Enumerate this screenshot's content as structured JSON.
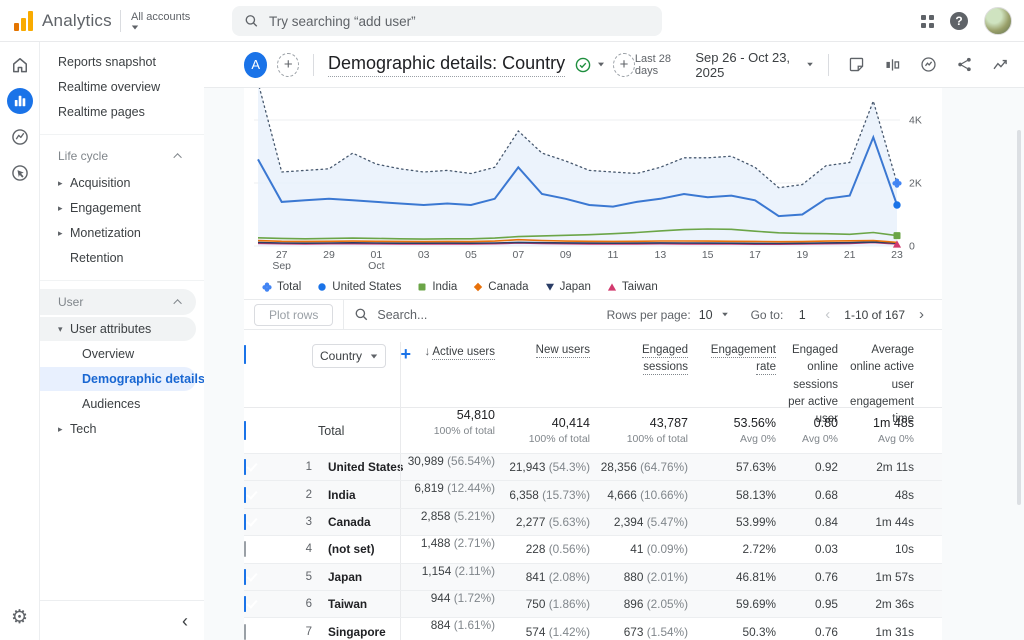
{
  "app_bar": {
    "product": "Analytics",
    "account_switcher": "All accounts",
    "search_placeholder": "Try searching “add user”"
  },
  "sidebar": {
    "top": [
      "Reports snapshot",
      "Realtime overview",
      "Realtime pages"
    ],
    "lifecycle": {
      "label": "Life cycle",
      "items": [
        "Acquisition",
        "Engagement",
        "Monetization",
        "Retention"
      ]
    },
    "user": {
      "label": "User",
      "attributes": "User attributes",
      "children": [
        "Overview",
        "Demographic details",
        "Audiences"
      ],
      "tech": "Tech"
    }
  },
  "toolbar": {
    "avatar_letter": "A",
    "title": "Demographic details: Country",
    "date_preset": "Last 28 days",
    "date_range": "Sep 26 - Oct 23, 2025"
  },
  "chart_data": {
    "type": "line",
    "x_label_note": "days Sep 26 - Oct 23",
    "ylim": [
      0,
      4800
    ],
    "y_ticks": [
      {
        "v": 0,
        "label": "0"
      },
      {
        "v": 2000,
        "label": "2K"
      },
      {
        "v": 4000,
        "label": "4K"
      }
    ],
    "x_ticks": [
      {
        "i": 1,
        "label": "27",
        "sub": "Sep"
      },
      {
        "i": 3,
        "label": "29"
      },
      {
        "i": 5,
        "label": "01",
        "sub": "Oct"
      },
      {
        "i": 7,
        "label": "03"
      },
      {
        "i": 9,
        "label": "05"
      },
      {
        "i": 11,
        "label": "07"
      },
      {
        "i": 13,
        "label": "09"
      },
      {
        "i": 15,
        "label": "11"
      },
      {
        "i": 17,
        "label": "13"
      },
      {
        "i": 19,
        "label": "15"
      },
      {
        "i": 21,
        "label": "17"
      },
      {
        "i": 23,
        "label": "19"
      },
      {
        "i": 25,
        "label": "21"
      },
      {
        "i": 27,
        "label": "23"
      }
    ],
    "series": [
      {
        "name": "Total",
        "color": "#4285f4",
        "line_color": "#47586e",
        "marker": "clover",
        "dotted": true,
        "width": 1.3,
        "area": true,
        "end_marker": true,
        "values": [
          5200,
          2350,
          2400,
          2450,
          2950,
          2600,
          2450,
          2350,
          2400,
          2300,
          2500,
          3650,
          2950,
          2700,
          2400,
          2350,
          2300,
          2500,
          2800,
          2800,
          2850,
          2500,
          1850,
          1950,
          2550,
          2650,
          4600,
          2000
        ]
      },
      {
        "name": "United States",
        "color": "#1a73e8",
        "line_color": "#3b78d2",
        "marker": "circle",
        "dotted": false,
        "width": 2,
        "end_marker": true,
        "values": [
          2750,
          1400,
          1450,
          1500,
          1450,
          1400,
          1350,
          1300,
          1350,
          1300,
          1500,
          2500,
          1650,
          1500,
          1300,
          1250,
          1400,
          1500,
          1650,
          1550,
          1600,
          1450,
          950,
          1000,
          1500,
          1600,
          3450,
          1300
        ]
      },
      {
        "name": "India",
        "color": "#6ba547",
        "line_color": "#6ba547",
        "marker": "square",
        "dotted": false,
        "width": 1.6,
        "end_marker": true,
        "values": [
          260,
          240,
          230,
          240,
          250,
          240,
          230,
          220,
          230,
          230,
          250,
          300,
          320,
          340,
          360,
          390,
          430,
          480,
          520,
          540,
          530,
          470,
          420,
          400,
          390,
          370,
          430,
          330
        ]
      },
      {
        "name": "Canada",
        "color": "#e8710a",
        "line_color": "#e8710a",
        "marker": "diamond",
        "dotted": false,
        "width": 1.6,
        "end_marker": false,
        "values": [
          170,
          150,
          145,
          150,
          155,
          150,
          145,
          140,
          145,
          140,
          155,
          200,
          175,
          155,
          150,
          145,
          150,
          160,
          160,
          155,
          150,
          145,
          135,
          140,
          155,
          165,
          175,
          115
        ]
      },
      {
        "name": "Japan",
        "color": "#2a3d66",
        "line_color": "#2a3d66",
        "marker": "tri_down",
        "dotted": false,
        "width": 1.6,
        "end_marker": false,
        "values": [
          110,
          95,
          90,
          95,
          100,
          95,
          90,
          88,
          92,
          88,
          95,
          115,
          105,
          98,
          92,
          88,
          92,
          98,
          95,
          92,
          88,
          82,
          80,
          85,
          98,
          105,
          125,
          90
        ]
      },
      {
        "name": "Taiwan",
        "color": "#d23a6e",
        "line_color": "#d23a6e",
        "marker": "tri_up",
        "dotted": false,
        "width": 1.6,
        "end_marker": true,
        "values": [
          85,
          72,
          68,
          72,
          74,
          70,
          65,
          62,
          66,
          62,
          72,
          95,
          82,
          72,
          66,
          62,
          66,
          72,
          68,
          66,
          62,
          56,
          56,
          62,
          72,
          82,
          115,
          65
        ]
      }
    ]
  },
  "controls": {
    "plot_rows": "Plot rows",
    "search_placeholder": "Search...",
    "rows_per_page_label": "Rows per page:",
    "rows_per_page_value": "10",
    "goto_label": "Go to:",
    "goto_value": "1",
    "pagination_range": "1-10 of 167"
  },
  "table": {
    "dimension": "Country",
    "headers": [
      {
        "label": "Active users",
        "sorted": true,
        "tip": true
      },
      {
        "label": "New users",
        "tip": true
      },
      {
        "label": "Engaged sessions",
        "tip": true
      },
      {
        "label": "Engagement rate",
        "tip": true
      },
      {
        "label": "Engaged online sessions per active user",
        "tip": false
      },
      {
        "label": "Average online active user engagement time",
        "tip": false
      }
    ],
    "total": {
      "label": "Total",
      "cells": [
        {
          "v": "54,810",
          "s": "100% of total"
        },
        {
          "v": "40,414",
          "s": "100% of total"
        },
        {
          "v": "43,787",
          "s": "100% of total"
        },
        {
          "v": "53.56%",
          "s": "Avg 0%"
        },
        {
          "v": "0.80",
          "s": "Avg 0%"
        },
        {
          "v": "1m 48s",
          "s": "Avg 0%"
        }
      ]
    },
    "rows": [
      {
        "n": "1",
        "country": "United States",
        "checked": true,
        "cells": [
          {
            "v": "30,989",
            "pct": "(56.54%)"
          },
          {
            "v": "21,943",
            "pct": "(54.3%)"
          },
          {
            "v": "28,356",
            "pct": "(64.76%)"
          },
          {
            "v": "57.63%"
          },
          {
            "v": "0.92"
          },
          {
            "v": "2m 11s"
          }
        ]
      },
      {
        "n": "2",
        "country": "India",
        "checked": true,
        "cells": [
          {
            "v": "6,819",
            "pct": "(12.44%)"
          },
          {
            "v": "6,358",
            "pct": "(15.73%)"
          },
          {
            "v": "4,666",
            "pct": "(10.66%)"
          },
          {
            "v": "58.13%"
          },
          {
            "v": "0.68"
          },
          {
            "v": "48s"
          }
        ]
      },
      {
        "n": "3",
        "country": "Canada",
        "checked": true,
        "cells": [
          {
            "v": "2,858",
            "pct": "(5.21%)"
          },
          {
            "v": "2,277",
            "pct": "(5.63%)"
          },
          {
            "v": "2,394",
            "pct": "(5.47%)"
          },
          {
            "v": "53.99%"
          },
          {
            "v": "0.84"
          },
          {
            "v": "1m 44s"
          }
        ]
      },
      {
        "n": "4",
        "country": "(not set)",
        "checked": false,
        "cells": [
          {
            "v": "1,488",
            "pct": "(2.71%)"
          },
          {
            "v": "228",
            "pct": "(0.56%)"
          },
          {
            "v": "41",
            "pct": "(0.09%)"
          },
          {
            "v": "2.72%"
          },
          {
            "v": "0.03"
          },
          {
            "v": "10s"
          }
        ]
      },
      {
        "n": "5",
        "country": "Japan",
        "checked": true,
        "cells": [
          {
            "v": "1,154",
            "pct": "(2.11%)"
          },
          {
            "v": "841",
            "pct": "(2.08%)"
          },
          {
            "v": "880",
            "pct": "(2.01%)"
          },
          {
            "v": "46.81%"
          },
          {
            "v": "0.76"
          },
          {
            "v": "1m 57s"
          }
        ]
      },
      {
        "n": "6",
        "country": "Taiwan",
        "checked": true,
        "cells": [
          {
            "v": "944",
            "pct": "(1.72%)"
          },
          {
            "v": "750",
            "pct": "(1.86%)"
          },
          {
            "v": "896",
            "pct": "(2.05%)"
          },
          {
            "v": "59.69%"
          },
          {
            "v": "0.95"
          },
          {
            "v": "2m 36s"
          }
        ]
      },
      {
        "n": "7",
        "country": "Singapore",
        "checked": false,
        "cells": [
          {
            "v": "884",
            "pct": "(1.61%)"
          },
          {
            "v": "574",
            "pct": "(1.42%)"
          },
          {
            "v": "673",
            "pct": "(1.54%)"
          },
          {
            "v": "50.3%"
          },
          {
            "v": "0.76"
          },
          {
            "v": "1m 31s"
          }
        ]
      }
    ]
  }
}
